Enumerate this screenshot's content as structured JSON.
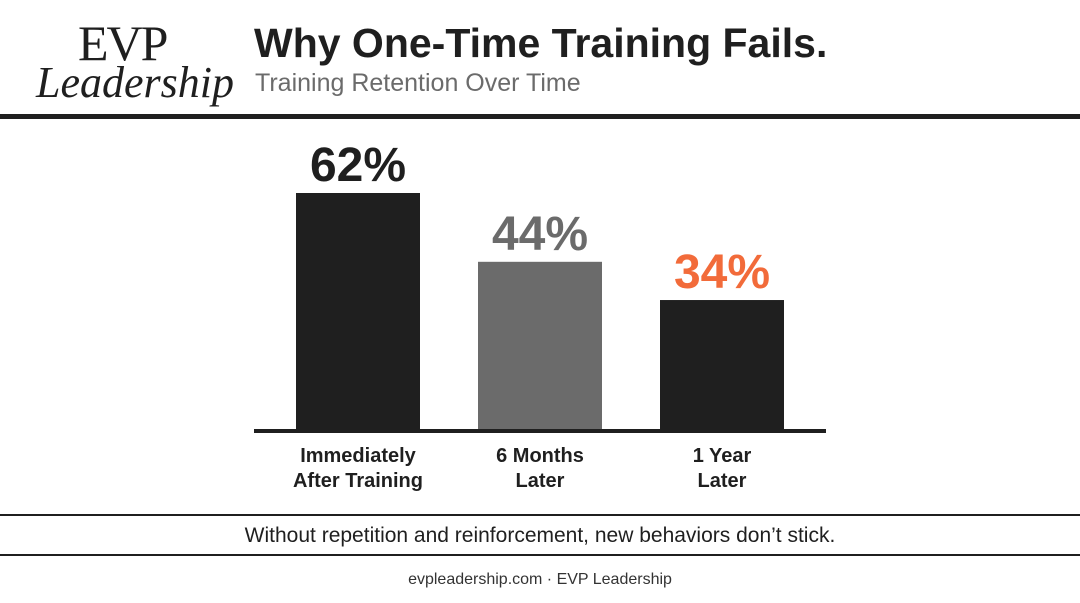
{
  "logo": {
    "line1": "EVP",
    "line2": "Leadership"
  },
  "header": {
    "title": "Why One-Time Training Fails.",
    "subtitle": "Training Retention Over Time"
  },
  "chart_data": {
    "type": "bar",
    "categories": [
      [
        "Immediately",
        "After Training"
      ],
      [
        "6 Months",
        "Later"
      ],
      [
        "1 Year",
        "Later"
      ]
    ],
    "values": [
      62,
      44,
      34
    ],
    "value_labels": [
      "62%",
      "44%",
      "34%"
    ],
    "bar_colors": [
      "#1f1f1f",
      "#6b6b6b",
      "#1f1f1f"
    ],
    "label_colors": [
      "#1f1f1f",
      "#6b6b6b",
      "#f26b3a"
    ],
    "unit": "%",
    "ylim": [
      0,
      62
    ],
    "grid": false,
    "legend": "none"
  },
  "tagline": "Without repetition and reinforcement, new behaviors don’t stick.",
  "footer": "evpleadership.com · EVP Leadership"
}
